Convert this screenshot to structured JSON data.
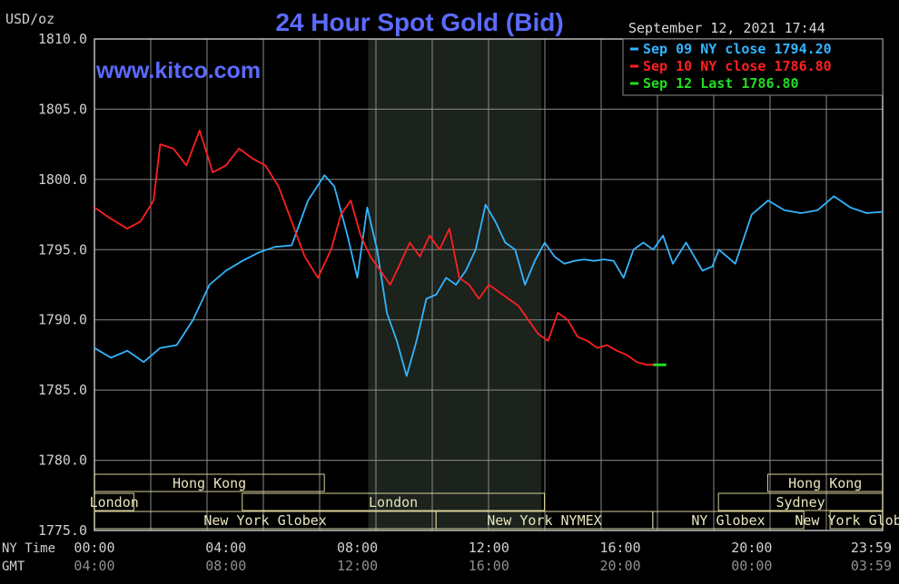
{
  "header": {
    "title": "24 Hour Spot Gold (Bid)",
    "watermark": "www.kitco.com",
    "datetime": "September 12, 2021 17:44",
    "unit": "USD/oz"
  },
  "legend": [
    {
      "label": "Sep 09 NY close 1794.20",
      "color": "#33b5ff"
    },
    {
      "label": "Sep 10 NY close 1786.80",
      "color": "#ff2020"
    },
    {
      "label": "Sep 12 Last 1786.80",
      "color": "#22dd22"
    }
  ],
  "axis_labels": {
    "ny_time": "NY Time",
    "gmt": "GMT"
  },
  "sessions": [
    {
      "label": "Hong Kong",
      "row": 0,
      "start": 0,
      "end": 7
    },
    {
      "label": "Hong Kong",
      "row": 0,
      "start": 20.5,
      "end": 24
    },
    {
      "label": "London",
      "row": 1,
      "start": 0,
      "end": 1.2
    },
    {
      "label": "London",
      "row": 1,
      "start": 4.5,
      "end": 13.7
    },
    {
      "label": "Sydney",
      "row": 1,
      "start": 19,
      "end": 24
    },
    {
      "label": "New York Globex",
      "row": 2,
      "start": 0,
      "end": 10.4
    },
    {
      "label": "New York NYMEX",
      "row": 2,
      "start": 10.4,
      "end": 17
    },
    {
      "label": "NY Globex",
      "row": 2,
      "start": 17,
      "end": 21.6
    },
    {
      "label": "New York Globex",
      "row": 2,
      "start": 22.4,
      "end": 30
    }
  ],
  "chart_data": {
    "type": "line",
    "title": "24 Hour Spot Gold (Bid)",
    "ylabel": "USD/oz",
    "ylim": [
      1775,
      1810
    ],
    "yticks": [
      "1810.0",
      "1805.0",
      "1800.0",
      "1795.0",
      "1790.0",
      "1785.0",
      "1780.0",
      "1775.0"
    ],
    "xlim": [
      0,
      23.983
    ],
    "xticks_ny": [
      "00:00",
      "04:00",
      "08:00",
      "12:00",
      "16:00",
      "20:00",
      "23:59"
    ],
    "xticks_gmt": [
      "04:00",
      "08:00",
      "12:00",
      "16:00",
      "20:00",
      "00:00",
      "03:59"
    ],
    "xtick_hours": [
      0,
      4,
      8,
      12,
      16,
      20,
      23.983
    ],
    "shaded_range": [
      8.33,
      13.6
    ],
    "grid": true,
    "series": [
      {
        "name": "Sep 09 NY close 1794.20",
        "color": "#33b5ff",
        "x": [
          0,
          0.5,
          1,
          1.5,
          2,
          2.5,
          3,
          3.5,
          4,
          4.5,
          5,
          5.5,
          6,
          6.5,
          7,
          7.3,
          7.7,
          8,
          8.3,
          8.6,
          8.9,
          9.2,
          9.5,
          9.8,
          10.1,
          10.4,
          10.7,
          11,
          11.3,
          11.6,
          11.9,
          12.2,
          12.5,
          12.8,
          13.1,
          13.4,
          13.7,
          14,
          14.3,
          14.6,
          14.9,
          15.2,
          15.5,
          15.8,
          16.1,
          16.4,
          16.7,
          17,
          17.3,
          17.6,
          18,
          18.5,
          18.8,
          19,
          19.5,
          20,
          20.5,
          21,
          21.5,
          22,
          22.5,
          23,
          23.5,
          23.983
        ],
        "values": [
          1788.0,
          1787.3,
          1787.8,
          1787.0,
          1788.0,
          1788.2,
          1790.0,
          1792.5,
          1793.5,
          1794.2,
          1794.8,
          1795.2,
          1795.3,
          1798.5,
          1800.3,
          1799.5,
          1796.0,
          1793.0,
          1798.0,
          1795.0,
          1790.5,
          1788.5,
          1786.0,
          1788.5,
          1791.5,
          1791.8,
          1793.0,
          1792.5,
          1793.5,
          1795.0,
          1798.2,
          1797.0,
          1795.5,
          1795.0,
          1792.5,
          1794.2,
          1795.5,
          1794.5,
          1794.0,
          1794.2,
          1794.3,
          1794.2,
          1794.3,
          1794.2,
          1793.0,
          1795.0,
          1795.5,
          1795.0,
          1796.0,
          1794.0,
          1795.5,
          1793.5,
          1793.8,
          1795.0,
          1794.0,
          1797.5,
          1798.5,
          1797.8,
          1797.6,
          1797.8,
          1798.8,
          1798.0,
          1797.6,
          1797.7
        ]
      },
      {
        "name": "Sep 10 NY close 1786.80",
        "color": "#ff2020",
        "x": [
          0,
          0.5,
          1,
          1.4,
          1.8,
          2,
          2.4,
          2.8,
          3.2,
          3.6,
          4.0,
          4.4,
          4.8,
          5.2,
          5.6,
          6.0,
          6.4,
          6.8,
          7.2,
          7.5,
          7.8,
          8.1,
          8.4,
          8.7,
          9.0,
          9.3,
          9.6,
          9.9,
          10.2,
          10.5,
          10.8,
          11.1,
          11.4,
          11.7,
          12.0,
          12.3,
          12.6,
          12.9,
          13.2,
          13.5,
          13.8,
          14.1,
          14.4,
          14.7,
          15.0,
          15.3,
          15.6,
          15.9,
          16.2,
          16.5,
          16.8,
          17.0
        ],
        "values": [
          1798.0,
          1797.2,
          1796.5,
          1797.0,
          1798.5,
          1802.5,
          1802.2,
          1801.0,
          1803.5,
          1800.5,
          1801.0,
          1802.2,
          1801.5,
          1801.0,
          1799.5,
          1797.0,
          1794.5,
          1793.0,
          1795.0,
          1797.5,
          1798.5,
          1796.0,
          1794.5,
          1793.5,
          1792.5,
          1794.0,
          1795.5,
          1794.5,
          1796.0,
          1795.0,
          1796.5,
          1793.0,
          1792.5,
          1791.5,
          1792.5,
          1792.0,
          1791.5,
          1791.0,
          1790.0,
          1789.0,
          1788.5,
          1790.5,
          1790.0,
          1788.8,
          1788.5,
          1788.0,
          1788.2,
          1787.8,
          1787.5,
          1787.0,
          1786.8,
          1786.8
        ]
      },
      {
        "name": "Sep 12 Last 1786.80",
        "color": "#22dd22",
        "x": [
          17.0,
          17.4
        ],
        "values": [
          1786.8,
          1786.8
        ]
      }
    ]
  }
}
